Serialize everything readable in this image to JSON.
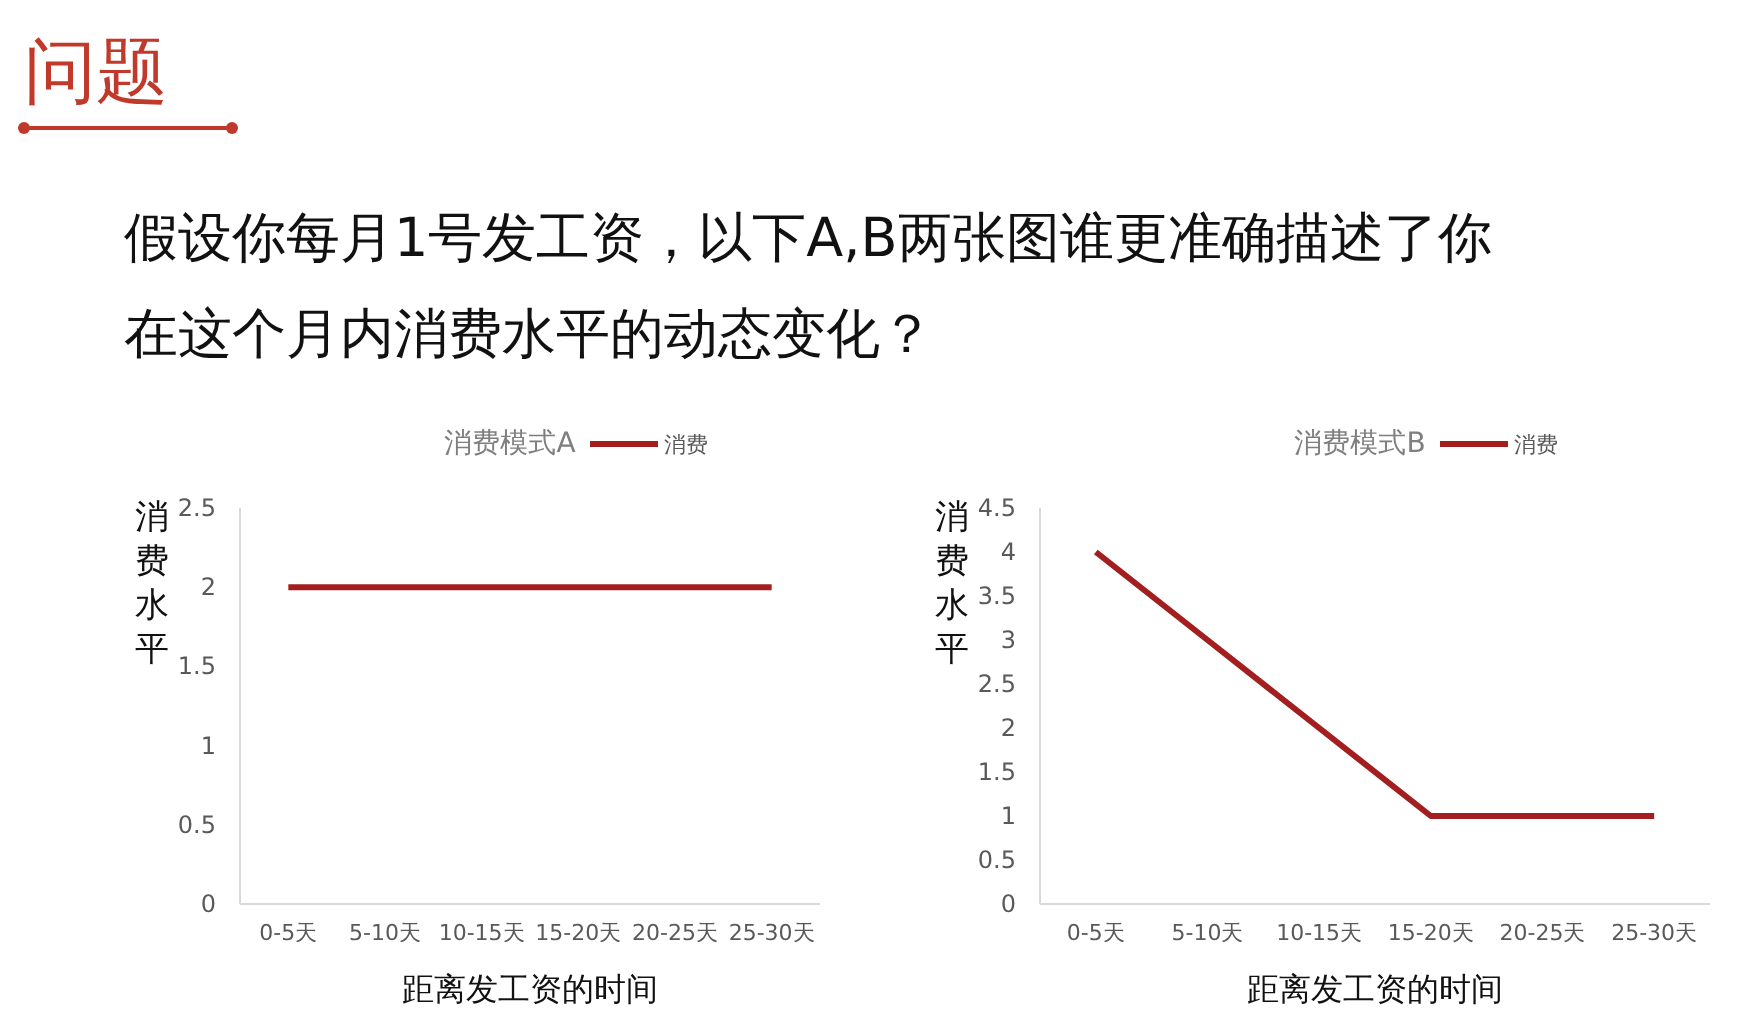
{
  "chart_data": [
    {
      "type": "other",
      "title": "问题",
      "annotations": [
        "假设你每月1号发工资，以下A,B两张图谁更准确描述了你在这个月内消费水平的动态变化？"
      ]
    },
    {
      "type": "line",
      "title": "消费模式A",
      "xlabel": "距离发工资的时间",
      "ylabel": "消费水平",
      "categories": [
        "0-5天",
        "5-10天",
        "10-15天",
        "15-20天",
        "20-25天",
        "25-30天"
      ],
      "series": [
        {
          "name": "消费",
          "color": "#a31f1f",
          "values": [
            2,
            2,
            2,
            2,
            2,
            2
          ]
        }
      ],
      "ylim": [
        0,
        2.5
      ],
      "yticks": [
        0,
        0.5,
        1,
        1.5,
        2,
        2.5
      ],
      "legend": "top"
    },
    {
      "type": "line",
      "title": "消费模式B",
      "xlabel": "距离发工资的时间",
      "ylabel": "消费水平",
      "categories": [
        "0-5天",
        "5-10天",
        "10-15天",
        "15-20天",
        "20-25天",
        "25-30天"
      ],
      "series": [
        {
          "name": "消费",
          "color": "#a31f1f",
          "values": [
            4,
            3,
            2,
            1,
            1,
            1
          ]
        }
      ],
      "ylim": [
        0,
        4.5
      ],
      "yticks": [
        0,
        0.5,
        1,
        1.5,
        2,
        2.5,
        3,
        3.5,
        4,
        4.5
      ],
      "legend": "top"
    }
  ]
}
